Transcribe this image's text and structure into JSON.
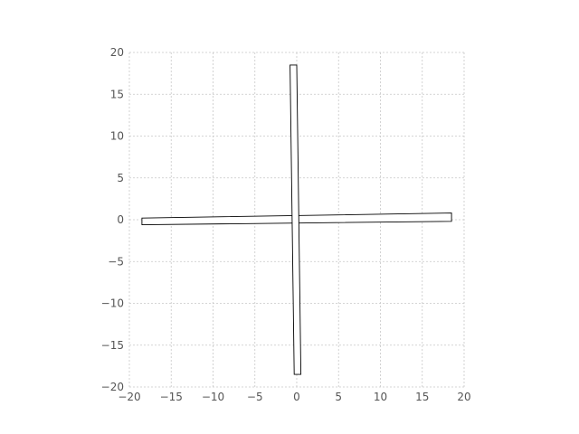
{
  "chart_data": {
    "type": "area",
    "title": "",
    "xlabel": "",
    "ylabel": "",
    "xlim": [
      -20,
      20
    ],
    "ylim": [
      -20,
      20
    ],
    "grid": true,
    "x_ticks": [
      -20,
      -15,
      -10,
      -5,
      0,
      5,
      10,
      15,
      20
    ],
    "y_ticks": [
      -20,
      -15,
      -10,
      -5,
      0,
      5,
      10,
      15,
      20
    ],
    "x_tick_labels": [
      "−20",
      "−15",
      "−10",
      "−5",
      "0",
      "5",
      "10",
      "15",
      "20"
    ],
    "y_tick_labels": [
      "−20",
      "−15",
      "−10",
      "−5",
      "0",
      "5",
      "10",
      "15",
      "20"
    ],
    "shapes": [
      {
        "name": "horizontal-bar",
        "points": [
          [
            -18.5,
            0.2
          ],
          [
            18.5,
            0.8
          ],
          [
            18.5,
            -0.2
          ],
          [
            -18.5,
            -0.6
          ]
        ]
      },
      {
        "name": "vertical-bar",
        "points": [
          [
            -0.8,
            18.5
          ],
          [
            0.0,
            18.5
          ],
          [
            0.5,
            -18.5
          ],
          [
            -0.3,
            -18.5
          ]
        ]
      }
    ]
  }
}
